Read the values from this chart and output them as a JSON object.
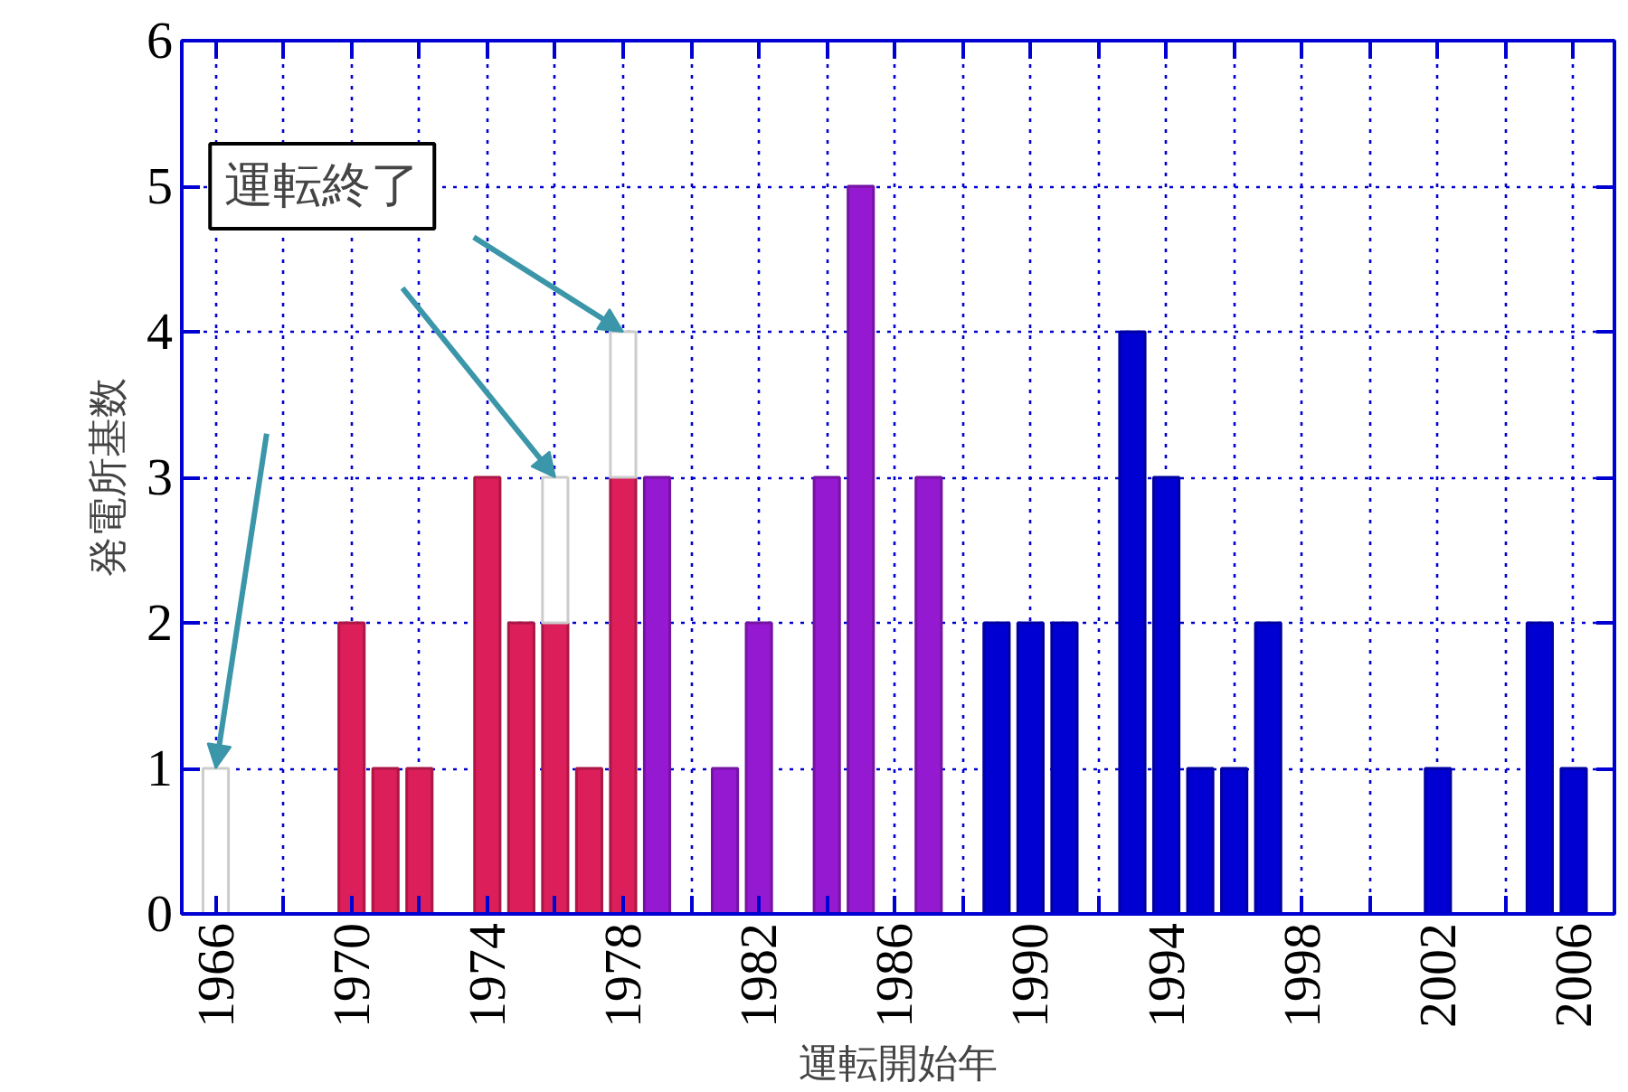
{
  "chart_data": {
    "type": "bar",
    "stacked": true,
    "xlabel": "運転開始年",
    "ylabel": "発電所基数",
    "x": [
      1966,
      1970,
      1971,
      1972,
      1974,
      1975,
      1976,
      1977,
      1978,
      1979,
      1981,
      1982,
      1984,
      1985,
      1987,
      1989,
      1990,
      1991,
      1993,
      1994,
      1995,
      1996,
      1997,
      2002,
      2005,
      2006
    ],
    "series": [
      {
        "color": "#dc1e5a",
        "values": [
          null,
          2,
          1,
          1,
          3,
          2,
          2,
          1,
          3,
          null,
          null,
          null,
          null,
          null,
          null,
          null,
          null,
          null,
          null,
          null,
          null,
          null,
          null,
          null,
          null,
          null
        ]
      },
      {
        "color": "#9619d2",
        "values": [
          null,
          null,
          null,
          null,
          null,
          null,
          null,
          null,
          null,
          3,
          1,
          2,
          3,
          5,
          3,
          null,
          null,
          null,
          null,
          null,
          null,
          null,
          null,
          null,
          null,
          null
        ]
      },
      {
        "color": "#0000d2",
        "values": [
          null,
          null,
          null,
          null,
          null,
          null,
          null,
          null,
          null,
          null,
          null,
          null,
          null,
          null,
          null,
          2,
          2,
          2,
          4,
          3,
          1,
          1,
          2,
          1,
          2,
          1
        ]
      },
      {
        "color": "#ffffff",
        "values": [
          1,
          null,
          null,
          null,
          null,
          null,
          1,
          null,
          1,
          null,
          null,
          null,
          null,
          null,
          null,
          null,
          null,
          null,
          null,
          null,
          null,
          null,
          null,
          null,
          null,
          null
        ]
      }
    ],
    "annotations": [
      {
        "text": "運転終了",
        "x": 1978,
        "y": 4
      }
    ],
    "xlim": [
      1965,
      2007.2
    ],
    "xticks": [
      1966,
      {
        "value": 1968,
        "label": null
      },
      1970,
      {
        "value": 1972,
        "label": null
      },
      1974,
      {
        "value": 1976,
        "label": null
      },
      1978,
      {
        "value": 1980,
        "label": null
      },
      1982,
      {
        "value": 1984,
        "label": null
      },
      1986,
      {
        "value": 1988,
        "label": null
      },
      1990,
      {
        "value": 1992,
        "label": null
      },
      1994,
      {
        "value": 1996,
        "label": null
      },
      1998,
      {
        "value": 2000,
        "label": null
      },
      2002,
      {
        "value": 2004,
        "label": null
      },
      2006
    ],
    "ylim": [
      0,
      6
    ],
    "yticks": [
      0,
      1,
      2,
      3,
      4,
      5,
      6
    ],
    "grid": true
  }
}
